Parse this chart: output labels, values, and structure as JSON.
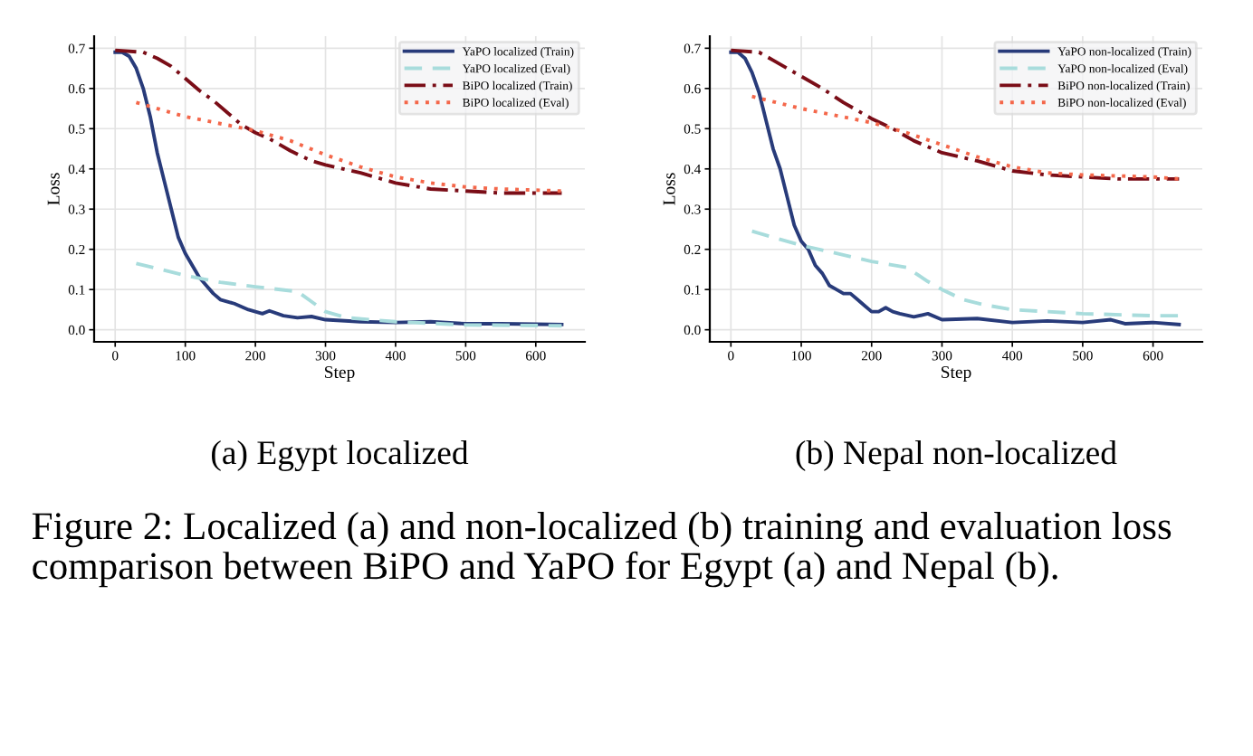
{
  "chart_data": [
    {
      "type": "line",
      "xlabel": "Step",
      "ylabel": "Loss",
      "xlim": [
        -30,
        670
      ],
      "ylim": [
        -0.03,
        0.73
      ],
      "xticks": [
        0,
        100,
        200,
        300,
        400,
        500,
        600
      ],
      "yticks": [
        {
          "value": 0,
          "label": "0.0"
        },
        0.1,
        0.2,
        0.3,
        0.4,
        0.5,
        0.6,
        0.7
      ],
      "grid": true,
      "legend": "top right",
      "marker": "none",
      "annotations": [
        "(a) Egypt localized",
        "Figure 2: Localized (a) and non-localized (b) training and evaluation loss comparison between BiPO and YaPO for Egypt (a) and Nepal (b)."
      ],
      "series": [
        {
          "name": "YaPO localized (Train)",
          "color": "#283b7a",
          "line_style": "solid",
          "x": [
            0,
            10,
            20,
            30,
            40,
            50,
            60,
            70,
            80,
            90,
            100,
            110,
            120,
            130,
            140,
            150,
            170,
            190,
            200,
            210,
            220,
            240,
            260,
            280,
            300,
            350,
            400,
            450,
            500,
            550,
            600,
            637
          ],
          "values": [
            0.69,
            0.69,
            0.68,
            0.65,
            0.6,
            0.53,
            0.44,
            0.37,
            0.3,
            0.23,
            0.19,
            0.16,
            0.13,
            0.11,
            0.09,
            0.075,
            0.065,
            0.05,
            0.045,
            0.04,
            0.047,
            0.035,
            0.03,
            0.033,
            0.025,
            0.02,
            0.018,
            0.02,
            0.015,
            0.015,
            0.014,
            0.013
          ]
        },
        {
          "name": "YaPO localized (Eval)",
          "color": "#a8dcdc",
          "line_style": "dashed",
          "x": [
            30,
            100,
            150,
            200,
            260,
            280,
            300,
            330,
            400,
            500,
            637
          ],
          "values": [
            0.165,
            0.135,
            0.118,
            0.107,
            0.095,
            0.07,
            0.045,
            0.03,
            0.02,
            0.012,
            0.01
          ]
        },
        {
          "name": "BiPO localized (Train)",
          "color": "#7a0d17",
          "line_style": "dashdot",
          "x": [
            0,
            40,
            60,
            80,
            100,
            120,
            140,
            160,
            180,
            200,
            220,
            250,
            280,
            300,
            350,
            400,
            450,
            500,
            550,
            600,
            637
          ],
          "values": [
            0.695,
            0.69,
            0.675,
            0.655,
            0.625,
            0.595,
            0.57,
            0.54,
            0.51,
            0.49,
            0.475,
            0.445,
            0.42,
            0.41,
            0.39,
            0.365,
            0.35,
            0.345,
            0.34,
            0.34,
            0.34
          ]
        },
        {
          "name": "BiPO localized (Eval)",
          "color": "#f4674a",
          "line_style": "dotted",
          "x": [
            30,
            100,
            200,
            250,
            300,
            350,
            400,
            450,
            500,
            550,
            637
          ],
          "values": [
            0.565,
            0.53,
            0.495,
            0.47,
            0.435,
            0.405,
            0.38,
            0.365,
            0.355,
            0.35,
            0.345
          ]
        }
      ]
    },
    {
      "type": "line",
      "xlabel": "Step",
      "ylabel": "Loss",
      "xlim": [
        -30,
        670
      ],
      "ylim": [
        -0.03,
        0.73
      ],
      "xticks": [
        0,
        100,
        200,
        300,
        400,
        500,
        600
      ],
      "yticks": [
        {
          "value": 0,
          "label": "0.0"
        },
        0.1,
        0.2,
        0.3,
        0.4,
        0.5,
        0.6,
        0.7
      ],
      "grid": true,
      "legend": "top right",
      "marker": "none",
      "annotations": [
        "(b) Nepal non-localized"
      ],
      "series": [
        {
          "name": "YaPO non-localized (Train)",
          "color": "#283b7a",
          "line_style": "solid",
          "x": [
            0,
            10,
            20,
            30,
            40,
            50,
            60,
            70,
            80,
            90,
            100,
            110,
            120,
            130,
            140,
            150,
            160,
            170,
            180,
            190,
            200,
            210,
            220,
            230,
            240,
            260,
            280,
            300,
            350,
            400,
            450,
            500,
            540,
            560,
            600,
            637
          ],
          "values": [
            0.69,
            0.69,
            0.675,
            0.64,
            0.59,
            0.52,
            0.45,
            0.4,
            0.33,
            0.26,
            0.22,
            0.2,
            0.16,
            0.14,
            0.11,
            0.1,
            0.09,
            0.09,
            0.075,
            0.06,
            0.045,
            0.045,
            0.055,
            0.045,
            0.04,
            0.032,
            0.04,
            0.025,
            0.028,
            0.018,
            0.022,
            0.018,
            0.025,
            0.015,
            0.018,
            0.013
          ]
        },
        {
          "name": "YaPO non-localized (Eval)",
          "color": "#a8dcdc",
          "line_style": "dashed",
          "x": [
            30,
            100,
            150,
            200,
            250,
            280,
            300,
            330,
            360,
            400,
            450,
            500,
            600,
            637
          ],
          "values": [
            0.245,
            0.21,
            0.19,
            0.17,
            0.155,
            0.12,
            0.1,
            0.075,
            0.062,
            0.05,
            0.045,
            0.04,
            0.035,
            0.035
          ]
        },
        {
          "name": "BiPO non-localized (Train)",
          "color": "#7a0d17",
          "line_style": "dashdot",
          "x": [
            0,
            40,
            60,
            80,
            100,
            130,
            160,
            200,
            230,
            260,
            300,
            350,
            400,
            450,
            500,
            550,
            600,
            637
          ],
          "values": [
            0.695,
            0.69,
            0.67,
            0.65,
            0.63,
            0.6,
            0.565,
            0.525,
            0.5,
            0.47,
            0.44,
            0.42,
            0.395,
            0.385,
            0.38,
            0.375,
            0.375,
            0.375
          ]
        },
        {
          "name": "BiPO non-localized (Eval)",
          "color": "#f4674a",
          "line_style": "dotted",
          "x": [
            30,
            100,
            200,
            250,
            300,
            350,
            400,
            450,
            500,
            600,
            637
          ],
          "values": [
            0.58,
            0.55,
            0.515,
            0.49,
            0.46,
            0.43,
            0.405,
            0.39,
            0.385,
            0.38,
            0.375
          ]
        }
      ]
    }
  ]
}
